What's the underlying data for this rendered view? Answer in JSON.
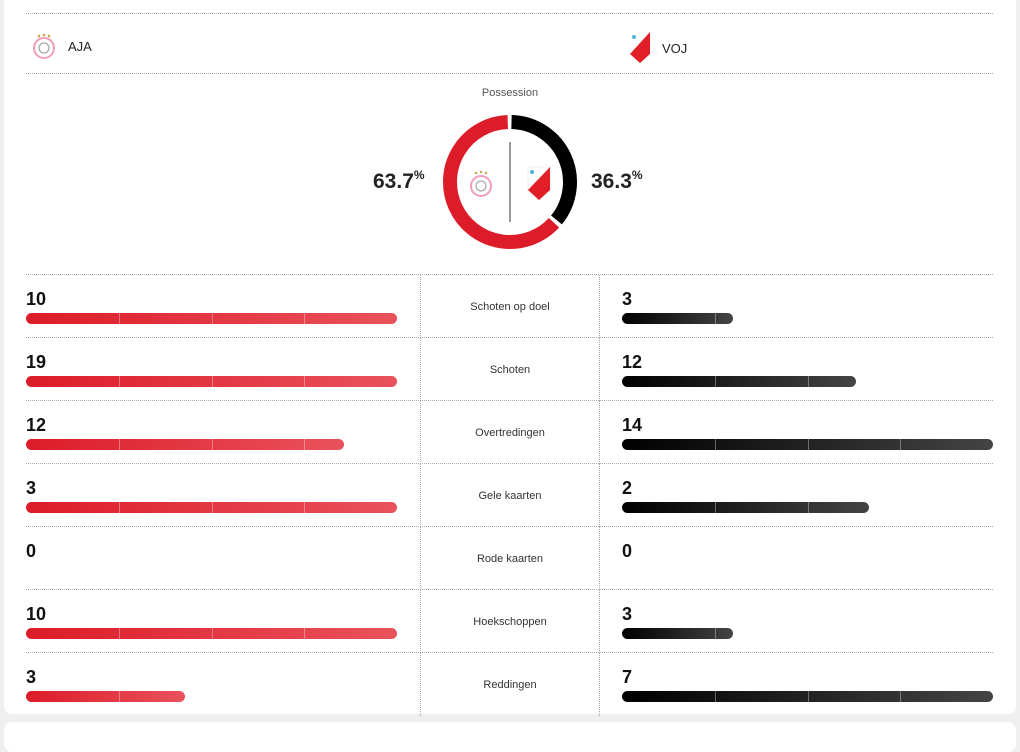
{
  "home": {
    "abbr": "AJA",
    "possession": "63.7",
    "possession_value": 63.7
  },
  "away": {
    "abbr": "VOJ",
    "possession": "36.3",
    "possession_value": 36.3
  },
  "possession_title": "Possession",
  "percent_sign": "%",
  "colors": {
    "home": "#dc1c28",
    "away": "#000000"
  },
  "stats": [
    {
      "label": "Schoten op doel",
      "home": "10",
      "away": "3"
    },
    {
      "label": "Schoten",
      "home": "19",
      "away": "12"
    },
    {
      "label": "Overtredingen",
      "home": "12",
      "away": "14"
    },
    {
      "label": "Gele kaarten",
      "home": "3",
      "away": "2"
    },
    {
      "label": "Rode kaarten",
      "home": "0",
      "away": "0"
    },
    {
      "label": "Hoekschoppen",
      "home": "10",
      "away": "3"
    },
    {
      "label": "Reddingen",
      "home": "3",
      "away": "7"
    }
  ]
}
